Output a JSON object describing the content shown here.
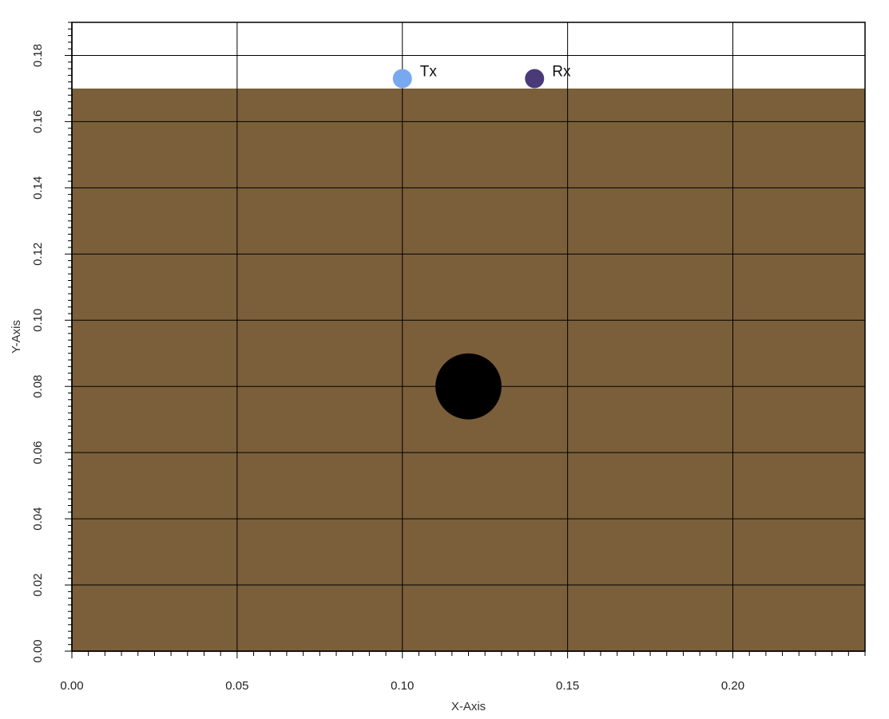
{
  "chart_data": {
    "type": "scatter",
    "xlabel": "X-Axis",
    "ylabel": "Y-Axis",
    "xlim": [
      0,
      0.24
    ],
    "ylim": [
      0,
      0.19
    ],
    "x_ticks": [
      "0.00",
      "0.05",
      "0.10",
      "0.15",
      "0.20"
    ],
    "y_ticks": [
      "0.00",
      "0.02",
      "0.04",
      "0.06",
      "0.08",
      "0.10",
      "0.12",
      "0.14",
      "0.16",
      "0.18"
    ],
    "grid": true,
    "background_region": {
      "x_range": [
        0,
        0.24
      ],
      "y_range": [
        0,
        0.17
      ],
      "color": "#7a5f3a"
    },
    "object": {
      "shape": "circle",
      "center": [
        0.12,
        0.08
      ],
      "radius": 0.01,
      "color": "#000000"
    },
    "markers": [
      {
        "label": "Tx",
        "x": 0.1,
        "y": 0.173,
        "color": "#78a9f0"
      },
      {
        "label": "Rx",
        "x": 0.14,
        "y": 0.173,
        "color": "#4a3a78"
      }
    ]
  }
}
